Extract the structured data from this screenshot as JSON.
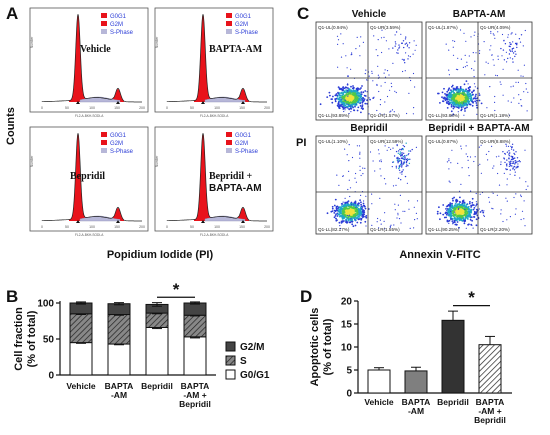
{
  "panels": {
    "A": "A",
    "B": "B",
    "C": "C",
    "D": "D"
  },
  "panel_a": {
    "counts_label": "Counts",
    "x_label": "Popidium Iodide (PI)",
    "legend": [
      "G0G1",
      "G2M",
      "S-Phase"
    ],
    "subplots": [
      {
        "title": "Vehicle",
        "title2": ""
      },
      {
        "title": "BAPTA-AM",
        "title2": ""
      },
      {
        "title": "Bepridil",
        "title2": ""
      },
      {
        "title": "Bepridil +",
        "title2": "BAPTA-AM"
      }
    ],
    "axis_ticks": [
      "0",
      "50",
      "100",
      "150",
      "200"
    ],
    "y_tick": "Number",
    "x_tick_label": "FL2-A-BKH-SODI-A"
  },
  "panel_c": {
    "pi_label": "PI",
    "x_label": "Annexin V-FITC",
    "subplots": [
      {
        "title": "Vehicle",
        "ul": "Q1-UL(0.94%)",
        "ur": "Q1-UR(3.59%)",
        "ll": "Q1-LL(93.89%)",
        "lr": "Q1-LR(1.57%)"
      },
      {
        "title": "BAPTA-AM",
        "ul": "Q1-UL(1.87%)",
        "ur": "Q1-UR(4.09%)",
        "ll": "Q1-LL(93.88%)",
        "lr": "Q1-LR(1.18%)"
      },
      {
        "title": "Bepridil",
        "ul": "Q1-UL(1.10%)",
        "ur": "Q1-UR(12.59%)",
        "ll": "Q1-LL(82.17%)",
        "lr": "Q1-LR(1.55%)"
      },
      {
        "title": "Bepridil + BAPTA-AM",
        "ul": "Q1-UL(0.87%)",
        "ur": "Q1-UR(8.88%)",
        "ll": "Q1-LL(90.25%)",
        "lr": "Q1-LR(2.20%)"
      }
    ]
  },
  "chart_data": [
    {
      "type": "bar",
      "stacked": true,
      "categories": [
        "Vehicle",
        "BAPTA-AM",
        "Bepridil",
        "BAPTA-AM + Bepridil"
      ],
      "category_labels": [
        [
          "Vehicle"
        ],
        [
          "BAPTA",
          "-AM"
        ],
        [
          "Bepridil"
        ],
        [
          "BAPTA",
          "-AM +",
          "Bepridil"
        ]
      ],
      "series": [
        {
          "name": "G0/G1",
          "values": [
            45,
            43,
            66,
            53
          ],
          "errors": [
            1,
            1,
            1.5,
            1.5
          ],
          "color": "#ffffff"
        },
        {
          "name": "S",
          "values": [
            40,
            41,
            20,
            30
          ],
          "errors": [
            1,
            1,
            1,
            1
          ],
          "color": "#999999",
          "pattern": "hatch"
        },
        {
          "name": "G2/M",
          "values": [
            15,
            15,
            12,
            17
          ],
          "errors": [
            1.5,
            1.5,
            2.5,
            1.5
          ],
          "color": "#444444"
        }
      ],
      "title": "",
      "xlabel": "",
      "ylabel": "Cell fraction",
      "ylabel2": "(% of total)",
      "ylim": [
        0,
        100
      ],
      "yticks": [
        0,
        50,
        100
      ],
      "significance": {
        "between": [
          2,
          3
        ],
        "label": "*"
      },
      "legend": "right"
    },
    {
      "type": "bar",
      "categories": [
        "Vehicle",
        "BAPTA-AM",
        "Bepridil",
        "BAPTA-AM + Bepridil"
      ],
      "category_labels": [
        [
          "Vehicle"
        ],
        [
          "BAPTA",
          "-AM"
        ],
        [
          "Bepridil"
        ],
        [
          "BAPTA",
          "-AM +",
          "Bepridil"
        ]
      ],
      "values": [
        5.0,
        4.8,
        15.8,
        10.5
      ],
      "errors": [
        0.5,
        0.8,
        2.0,
        1.8
      ],
      "colors": [
        "#ffffff",
        "#7f7f7f",
        "#333333",
        "#ffffff"
      ],
      "patterns": [
        "",
        "",
        "",
        "hatch"
      ],
      "title": "",
      "xlabel": "",
      "ylabel": "Apoptotic cells",
      "ylabel2": "(% of total)",
      "ylim": [
        0,
        20
      ],
      "yticks": [
        0,
        5,
        10,
        15,
        20
      ],
      "significance": {
        "between": [
          2,
          3
        ],
        "label": "*"
      }
    }
  ]
}
